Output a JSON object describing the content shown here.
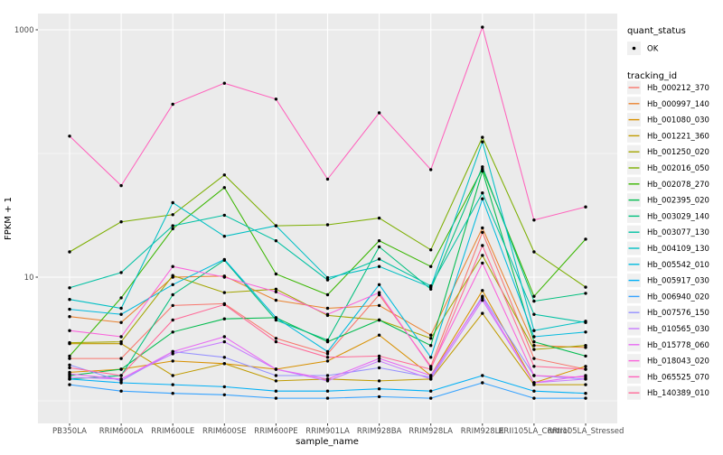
{
  "figure": {
    "legend": {
      "quant_status": {
        "title": "quant_status",
        "items": [
          {
            "label": "OK",
            "marker": "black-point"
          }
        ]
      },
      "tracking_id": {
        "title": "tracking_id"
      }
    },
    "colors": {
      "panel_background": "#EBEBEB",
      "gridline": "#FFFFFF",
      "tick_label": "#4D4D4D",
      "legend_key_background": "#F0F0F0",
      "point": "#000000"
    }
  },
  "chart_data": {
    "type": "line",
    "title": "",
    "xlabel": "sample_name",
    "ylabel": "FPKM + 1",
    "y_scale": "log10",
    "ylim": [
      0.66,
      1350
    ],
    "y_major_ticks": [
      {
        "value": 10,
        "label": "10"
      },
      {
        "value": 1000,
        "label": "1000"
      }
    ],
    "y_minor_ticks": [
      1,
      100
    ],
    "grid": true,
    "legend_position": "right",
    "marker": "black-point",
    "categories": [
      "PB350LA",
      "RRIM600LA",
      "RRIM600LE",
      "RRIM600SE",
      "RRIM600PE",
      "RRIM901LA",
      "RRIM928BA",
      "RRIM928LA",
      "RRIM928LE",
      "RRII105LA_Control",
      "RRII105LA_Stressed"
    ],
    "series": [
      {
        "name": "Hb_000212_370",
        "color": "#F8766D",
        "quant_status": "OK",
        "values": [
          2.2,
          2.2,
          5.9,
          6.1,
          3.2,
          2.4,
          7.2,
          1.9,
          23,
          2.2,
          1.8
        ]
      },
      {
        "name": "Hb_000997_140",
        "color": "#EA8331",
        "quant_status": "OK",
        "values": [
          4.8,
          4.3,
          10.0,
          10.2,
          6.5,
          5.6,
          5.9,
          3.4,
          25,
          2.8,
          2.7
        ]
      },
      {
        "name": "Hb_001080_030",
        "color": "#D89000",
        "quant_status": "OK",
        "values": [
          1.7,
          1.8,
          2.1,
          2.0,
          1.8,
          2.1,
          3.4,
          1.6,
          7.8,
          1.4,
          1.9
        ]
      },
      {
        "name": "Hb_001221_360",
        "color": "#C09B00",
        "quant_status": "OK",
        "values": [
          2.9,
          2.9,
          1.6,
          2.0,
          1.45,
          1.5,
          1.45,
          1.5,
          5.1,
          1.35,
          1.35
        ]
      },
      {
        "name": "Hb_001250_020",
        "color": "#A3A500",
        "quant_status": "OK",
        "values": [
          2.95,
          3.0,
          10.3,
          7.5,
          8.0,
          4.9,
          4.5,
          3.2,
          15,
          2.6,
          2.8
        ]
      },
      {
        "name": "Hb_002016_050",
        "color": "#7CAE00",
        "quant_status": "OK",
        "values": [
          16,
          28,
          32,
          67,
          26,
          26.5,
          30,
          16.6,
          135,
          16,
          8.3
        ]
      },
      {
        "name": "Hb_002078_270",
        "color": "#39B600",
        "quant_status": "OK",
        "values": [
          2.3,
          6.8,
          24.6,
          53,
          10.6,
          7.2,
          19.7,
          12.2,
          75,
          7.0,
          20.3
        ]
      },
      {
        "name": "Hb_002395_020",
        "color": "#00BB4E",
        "quant_status": "OK",
        "values": [
          1.6,
          1.8,
          3.6,
          4.6,
          4.7,
          3.0,
          4.5,
          2.8,
          72,
          3.0,
          2.3
        ]
      },
      {
        "name": "Hb_003029_140",
        "color": "#00BF7D",
        "quant_status": "OK",
        "values": [
          1.5,
          1.6,
          7.2,
          13.7,
          4.5,
          3.1,
          17.6,
          8.0,
          78,
          6.4,
          7.4
        ]
      },
      {
        "name": "Hb_003077_130",
        "color": "#00C1A3",
        "quant_status": "OK",
        "values": [
          8.2,
          10.9,
          26,
          31.7,
          19.7,
          9.5,
          14,
          8.5,
          48,
          5.0,
          4.3
        ]
      },
      {
        "name": "Hb_004109_130",
        "color": "#00BFC4",
        "quant_status": "OK",
        "values": [
          6.6,
          5.6,
          40,
          21.4,
          26,
          9.9,
          12.2,
          8.3,
          124,
          3.7,
          4.4
        ]
      },
      {
        "name": "Hb_005542_010",
        "color": "#00BADE",
        "quant_status": "OK",
        "values": [
          5.5,
          5.0,
          8.7,
          13.9,
          4.7,
          2.5,
          8.7,
          2.25,
          43,
          3.3,
          3.6
        ]
      },
      {
        "name": "Hb_005917_030",
        "color": "#00B0F6",
        "quant_status": "OK",
        "values": [
          1.5,
          1.4,
          1.35,
          1.3,
          1.2,
          1.2,
          1.25,
          1.2,
          1.6,
          1.2,
          1.15
        ]
      },
      {
        "name": "Hb_006940_020",
        "color": "#35A2FF",
        "quant_status": "OK",
        "values": [
          1.35,
          1.2,
          1.15,
          1.12,
          1.05,
          1.05,
          1.08,
          1.05,
          1.4,
          1.05,
          1.05
        ]
      },
      {
        "name": "Hb_007576_150",
        "color": "#9590FF",
        "quant_status": "OK",
        "values": [
          1.95,
          1.45,
          2.5,
          2.25,
          1.6,
          1.6,
          1.85,
          1.55,
          7.0,
          1.6,
          1.5
        ]
      },
      {
        "name": "Hb_010565_030",
        "color": "#C77CFF",
        "quant_status": "OK",
        "values": [
          1.55,
          1.5,
          2.4,
          3.0,
          1.8,
          1.45,
          2.1,
          1.5,
          6.5,
          1.4,
          1.5
        ]
      },
      {
        "name": "Hb_015778_060",
        "color": "#E76BF3",
        "quant_status": "OK",
        "values": [
          1.65,
          1.5,
          2.5,
          3.3,
          1.8,
          1.5,
          2.2,
          1.6,
          6.8,
          1.4,
          1.6
        ]
      },
      {
        "name": "Hb_018043_020",
        "color": "#FA62DB",
        "quant_status": "OK",
        "values": [
          3.7,
          3.3,
          12.2,
          10.0,
          7.6,
          5.0,
          7.5,
          1.85,
          13,
          1.6,
          1.55
        ]
      },
      {
        "name": "Hb_065525_070",
        "color": "#FF62BC",
        "quant_status": "OK",
        "values": [
          138,
          55,
          250,
          370,
          275,
          62,
          213,
          74,
          1050,
          29,
          37
        ]
      },
      {
        "name": "Hb_140389_010",
        "color": "#FF6A98",
        "quant_status": "OK",
        "values": [
          1.85,
          1.6,
          4.5,
          6.0,
          3.0,
          2.25,
          2.3,
          1.8,
          18,
          1.9,
          1.8
        ]
      }
    ]
  }
}
